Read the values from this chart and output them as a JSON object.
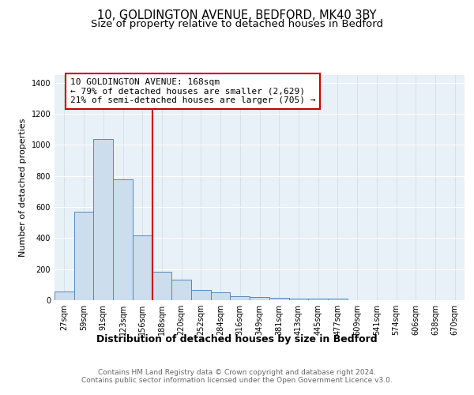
{
  "title_line1": "10, GOLDINGTON AVENUE, BEDFORD, MK40 3BY",
  "title_line2": "Size of property relative to detached houses in Bedford",
  "xlabel": "Distribution of detached houses by size in Bedford",
  "ylabel": "Number of detached properties",
  "bar_color": "#ccdded",
  "bar_edge_color": "#5588bb",
  "vline_color": "#cc0000",
  "annotation_text": "10 GOLDINGTON AVENUE: 168sqm\n← 79% of detached houses are smaller (2,629)\n21% of semi-detached houses are larger (705) →",
  "annotation_box_color": "white",
  "annotation_box_edge": "#cc0000",
  "categories": [
    "27sqm",
    "59sqm",
    "91sqm",
    "123sqm",
    "156sqm",
    "188sqm",
    "220sqm",
    "252sqm",
    "284sqm",
    "316sqm",
    "349sqm",
    "381sqm",
    "413sqm",
    "445sqm",
    "477sqm",
    "509sqm",
    "541sqm",
    "574sqm",
    "606sqm",
    "638sqm",
    "670sqm"
  ],
  "values": [
    55,
    570,
    1040,
    780,
    415,
    185,
    130,
    65,
    50,
    25,
    22,
    15,
    12,
    8,
    10,
    2,
    0,
    0,
    0,
    0,
    0
  ],
  "ylim": [
    0,
    1450
  ],
  "yticks": [
    0,
    200,
    400,
    600,
    800,
    1000,
    1200,
    1400
  ],
  "background_color": "#e8f0f8",
  "footer_line1": "Contains HM Land Registry data © Crown copyright and database right 2024.",
  "footer_line2": "Contains public sector information licensed under the Open Government Licence v3.0.",
  "title_fontsize": 10.5,
  "subtitle_fontsize": 9.5,
  "xlabel_fontsize": 9,
  "ylabel_fontsize": 8,
  "tick_fontsize": 7,
  "footer_fontsize": 6.5,
  "annot_fontsize": 8
}
